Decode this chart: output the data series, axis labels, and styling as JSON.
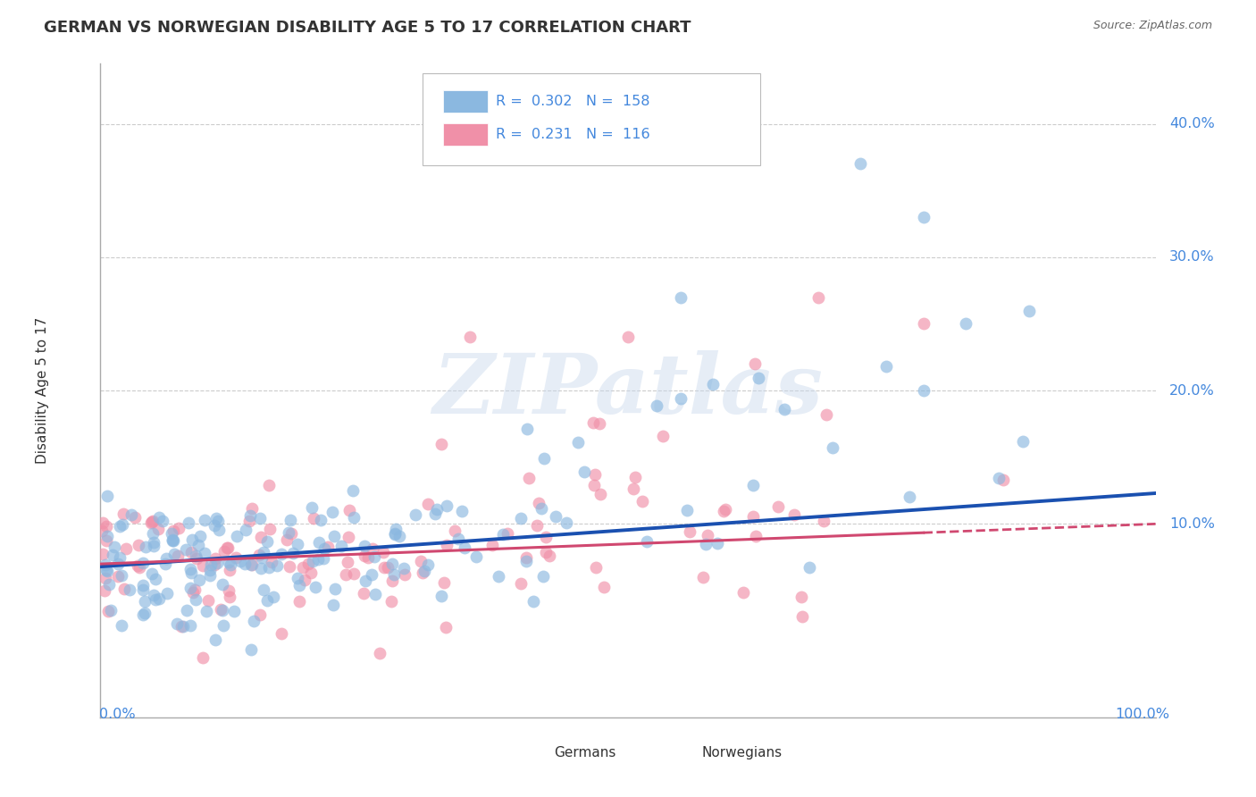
{
  "title": "GERMAN VS NORWEGIAN DISABILITY AGE 5 TO 17 CORRELATION CHART",
  "source": "Source: ZipAtlas.com",
  "ylabel": "Disability Age 5 to 17",
  "german_color": "#8bb8e0",
  "norwegian_color": "#f090a8",
  "german_line_color": "#1a50b0",
  "norwegian_line_color": "#d04870",
  "watermark_text": "ZIPatlas",
  "background_color": "#ffffff",
  "xlim": [
    0.0,
    1.0
  ],
  "ylim": [
    -0.045,
    0.445
  ],
  "german_R": 0.302,
  "norwegian_R": 0.231,
  "german_N": 158,
  "norwegian_N": 116,
  "ytick_vals": [
    0.1,
    0.2,
    0.3,
    0.4
  ],
  "ytick_labels": [
    "10.0%",
    "20.0%",
    "30.0%",
    "40.0%"
  ],
  "axis_color": "#aaaaaa",
  "grid_color": "#cccccc",
  "label_color": "#4488dd",
  "text_color": "#333333"
}
